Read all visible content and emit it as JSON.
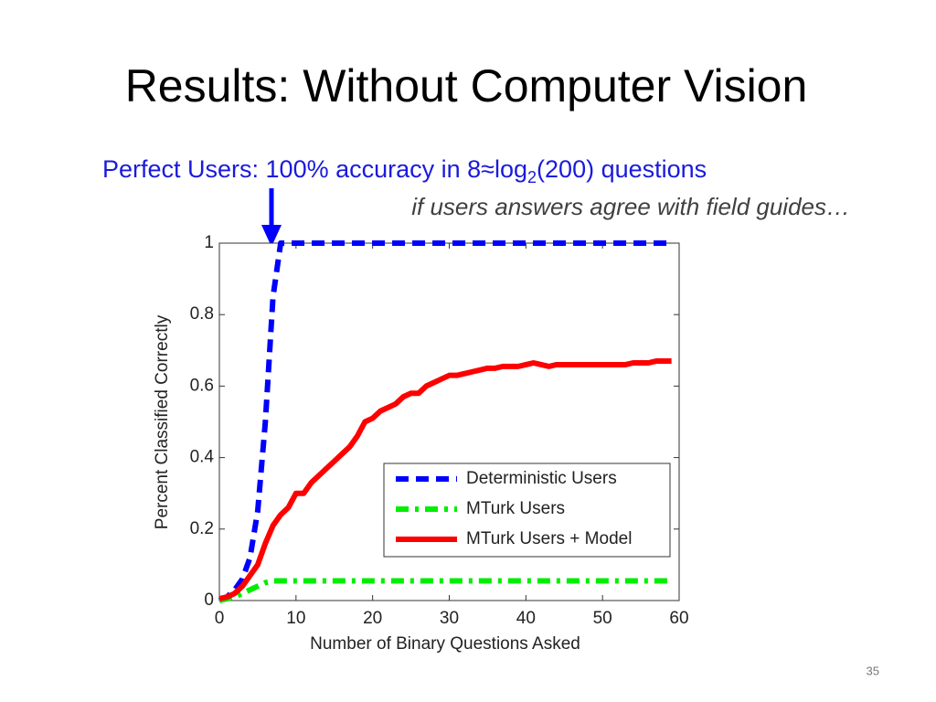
{
  "slide": {
    "title": "Results: Without Computer Vision",
    "subtitle": [
      "Perfect Users: 100% accuracy in 8≈log",
      "2",
      "(200) questions"
    ],
    "note": "if users answers agree with field guides…",
    "page_number": "35"
  },
  "chart_data": {
    "type": "line",
    "x_label": "Number of Binary Questions Asked",
    "y_label": "Percent Classified Correctly",
    "x": [
      0,
      1,
      2,
      3,
      4,
      5,
      6,
      7,
      8,
      9,
      10,
      11,
      12,
      13,
      14,
      15,
      16,
      17,
      18,
      19,
      20,
      21,
      22,
      23,
      24,
      25,
      26,
      27,
      28,
      29,
      30,
      31,
      32,
      33,
      34,
      35,
      36,
      37,
      38,
      39,
      40,
      41,
      42,
      43,
      44,
      45,
      46,
      47,
      48,
      49,
      50,
      51,
      52,
      53,
      54,
      55,
      56,
      57,
      58,
      59
    ],
    "series": [
      {
        "name": "Deterministic Users",
        "color": "#0000ff",
        "style": "dashed",
        "values": [
          0,
          0.01,
          0.03,
          0.06,
          0.12,
          0.25,
          0.5,
          0.85,
          1,
          1,
          1,
          1,
          1,
          1,
          1,
          1,
          1,
          1,
          1,
          1,
          1,
          1,
          1,
          1,
          1,
          1,
          1,
          1,
          1,
          1,
          1,
          1,
          1,
          1,
          1,
          1,
          1,
          1,
          1,
          1,
          1,
          1,
          1,
          1,
          1,
          1,
          1,
          1,
          1,
          1,
          1,
          1,
          1,
          1,
          1,
          1,
          1,
          1,
          1,
          1
        ]
      },
      {
        "name": "MTurk Users",
        "color": "#00ee00",
        "style": "dashdot",
        "values": [
          0,
          0.005,
          0.01,
          0.02,
          0.03,
          0.04,
          0.05,
          0.055,
          0.055,
          0.055,
          0.055,
          0.055,
          0.055,
          0.055,
          0.055,
          0.055,
          0.055,
          0.055,
          0.055,
          0.055,
          0.055,
          0.055,
          0.055,
          0.055,
          0.055,
          0.055,
          0.055,
          0.055,
          0.055,
          0.055,
          0.055,
          0.055,
          0.055,
          0.055,
          0.055,
          0.055,
          0.055,
          0.055,
          0.055,
          0.055,
          0.055,
          0.055,
          0.055,
          0.055,
          0.055,
          0.055,
          0.055,
          0.055,
          0.055,
          0.055,
          0.055,
          0.055,
          0.055,
          0.055,
          0.055,
          0.055,
          0.055,
          0.055,
          0.055,
          0.055
        ]
      },
      {
        "name": "MTurk Users + Model",
        "color": "#ff0000",
        "style": "solid",
        "values": [
          0.005,
          0.01,
          0.02,
          0.04,
          0.07,
          0.1,
          0.16,
          0.21,
          0.24,
          0.26,
          0.3,
          0.3,
          0.33,
          0.35,
          0.37,
          0.39,
          0.41,
          0.43,
          0.46,
          0.5,
          0.51,
          0.53,
          0.54,
          0.55,
          0.57,
          0.58,
          0.58,
          0.6,
          0.61,
          0.62,
          0.63,
          0.63,
          0.635,
          0.64,
          0.645,
          0.65,
          0.65,
          0.655,
          0.655,
          0.655,
          0.66,
          0.665,
          0.66,
          0.655,
          0.66,
          0.66,
          0.66,
          0.66,
          0.66,
          0.66,
          0.66,
          0.66,
          0.66,
          0.66,
          0.665,
          0.665,
          0.665,
          0.67,
          0.67,
          0.67
        ]
      }
    ],
    "xlim": [
      0,
      60
    ],
    "xticks": [
      0,
      10,
      20,
      30,
      40,
      50,
      60
    ],
    "ylim": [
      0,
      1
    ],
    "yticks": [
      0,
      0.2,
      0.4,
      0.6,
      0.8,
      1
    ],
    "legend": "lower right",
    "grid": false
  }
}
